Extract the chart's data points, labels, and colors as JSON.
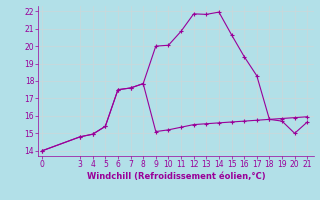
{
  "xlabel": "Windchill (Refroidissement éolien,°C)",
  "bg_color": "#b2e0e8",
  "grid_color": "#c8d8dc",
  "line_color": "#990099",
  "line1_x": [
    0,
    3,
    4,
    5,
    6,
    7,
    8,
    9,
    10,
    11,
    12,
    13,
    14,
    15,
    16,
    17,
    18,
    19,
    20,
    21
  ],
  "line1_y": [
    14.0,
    14.8,
    14.95,
    15.4,
    17.5,
    17.6,
    17.85,
    20.0,
    20.05,
    20.85,
    21.85,
    21.82,
    21.95,
    20.65,
    19.4,
    18.3,
    15.8,
    15.7,
    15.0,
    15.65
  ],
  "line2_x": [
    0,
    3,
    4,
    5,
    6,
    7,
    8,
    9,
    10,
    11,
    12,
    13,
    14,
    15,
    16,
    17,
    18,
    19,
    20,
    21
  ],
  "line2_y": [
    14.0,
    14.8,
    14.95,
    15.4,
    17.5,
    17.6,
    17.85,
    15.1,
    15.2,
    15.35,
    15.5,
    15.55,
    15.6,
    15.65,
    15.7,
    15.75,
    15.8,
    15.85,
    15.9,
    15.95
  ],
  "ylim": [
    13.7,
    22.3
  ],
  "yticks": [
    14,
    15,
    16,
    17,
    18,
    19,
    20,
    21,
    22
  ],
  "xlim": [
    -0.3,
    21.5
  ],
  "xticks": [
    0,
    3,
    4,
    5,
    6,
    7,
    8,
    9,
    10,
    11,
    12,
    13,
    14,
    15,
    16,
    17,
    18,
    19,
    20,
    21
  ]
}
